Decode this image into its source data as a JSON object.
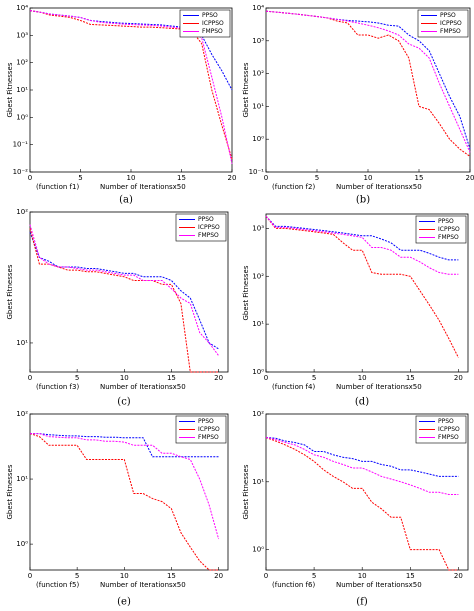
{
  "chart_data": [
    {
      "type": "line",
      "caption": "(a)",
      "x_note": "(function f1)",
      "xlabel": "Number of Iterationsx50",
      "ylabel": "Gbest Fitnesses",
      "yscale": "log",
      "grid": false,
      "legend": "upper right",
      "x": [
        0,
        1,
        2,
        3,
        4,
        5,
        6,
        7,
        8,
        9,
        10,
        11,
        12,
        13,
        14,
        15,
        16,
        17,
        18,
        19,
        20
      ],
      "xlim": [
        0,
        20
      ],
      "xticks": [
        0,
        5,
        10,
        15,
        20
      ],
      "ylim": [
        0.01,
        10000
      ],
      "yticks": [
        {
          "value": 0.01,
          "label": "10⁻²"
        },
        {
          "value": 0.1,
          "label": "10⁻¹"
        },
        {
          "value": 1,
          "label": "10⁰"
        },
        {
          "value": 10,
          "label": "10¹"
        },
        {
          "value": 100,
          "label": "10²"
        },
        {
          "value": 1000,
          "label": "10³"
        },
        {
          "value": 10000,
          "label": "10⁴"
        }
      ],
      "series": [
        {
          "name": "PPSO",
          "color": "#0000ff",
          "values": [
            8000,
            7000,
            6000,
            5500,
            5000,
            4500,
            3500,
            3200,
            3000,
            2800,
            2700,
            2600,
            2500,
            2400,
            2200,
            2000,
            1800,
            1000,
            200,
            50,
            10
          ]
        },
        {
          "name": "ICPPSO",
          "color": "#ff0000",
          "values": [
            8000,
            7000,
            5500,
            5000,
            4500,
            3500,
            2500,
            2400,
            2300,
            2200,
            2100,
            2000,
            2000,
            1900,
            1800,
            1700,
            1500,
            500,
            10,
            0.5,
            0.03
          ]
        },
        {
          "name": "FMPSO",
          "color": "#ff00ff",
          "values": [
            8000,
            7000,
            6000,
            5500,
            5000,
            4500,
            3500,
            3000,
            2800,
            2600,
            2500,
            2400,
            2300,
            2200,
            2000,
            1800,
            1500,
            800,
            30,
            1,
            0.02
          ]
        }
      ]
    },
    {
      "type": "line",
      "caption": "(b)",
      "x_note": "(function f2)",
      "xlabel": "Number of Iterationsx50",
      "ylabel": "Gbest Fitnesses",
      "yscale": "log",
      "grid": false,
      "legend": "upper right",
      "x": [
        0,
        1,
        2,
        3,
        4,
        5,
        6,
        7,
        8,
        9,
        10,
        11,
        12,
        13,
        14,
        15,
        16,
        17,
        18,
        19,
        20
      ],
      "xlim": [
        0,
        20
      ],
      "xticks": [
        0,
        5,
        10,
        15,
        20
      ],
      "ylim": [
        0.1,
        10000
      ],
      "yticks": [
        {
          "value": 0.1,
          "label": "10⁻¹"
        },
        {
          "value": 1,
          "label": "10⁰"
        },
        {
          "value": 10,
          "label": "10¹"
        },
        {
          "value": 100,
          "label": "10²"
        },
        {
          "value": 1000,
          "label": "10³"
        },
        {
          "value": 10000,
          "label": "10⁴"
        }
      ],
      "series": [
        {
          "name": "PPSO",
          "color": "#0000ff",
          "values": [
            8000,
            7500,
            7000,
            6500,
            6000,
            5500,
            5000,
            4500,
            4200,
            4000,
            3800,
            3500,
            3000,
            2800,
            1500,
            1000,
            500,
            100,
            20,
            5,
            0.5
          ]
        },
        {
          "name": "ICPPSO",
          "color": "#ff0000",
          "values": [
            8000,
            7500,
            7000,
            6500,
            6000,
            5500,
            5000,
            4000,
            3500,
            1500,
            1500,
            1200,
            1500,
            1000,
            300,
            10,
            8,
            3,
            1,
            0.5,
            0.3
          ]
        },
        {
          "name": "FMPSO",
          "color": "#ff00ff",
          "values": [
            8000,
            7500,
            7000,
            6500,
            6000,
            5500,
            5000,
            4500,
            4000,
            3500,
            3000,
            2500,
            2000,
            1500,
            800,
            600,
            300,
            50,
            10,
            2,
            0.4
          ]
        }
      ]
    },
    {
      "type": "line",
      "caption": "(c)",
      "x_note": "(function f3)",
      "xlabel": "Number of Iterationsx50",
      "ylabel": "Gbest Fitnesses",
      "yscale": "log",
      "grid": false,
      "legend": "upper right",
      "x": [
        0,
        1,
        2,
        3,
        4,
        5,
        6,
        7,
        8,
        9,
        10,
        11,
        12,
        13,
        14,
        15,
        16,
        17,
        18,
        19,
        20
      ],
      "xlim": [
        0,
        21
      ],
      "xticks": [
        0,
        5,
        10,
        15,
        20
      ],
      "ylim": [
        6,
        100
      ],
      "yticks": [
        {
          "value": 10,
          "label": "10¹"
        },
        {
          "value": 100,
          "label": "10²"
        }
      ],
      "series": [
        {
          "name": "PPSO",
          "color": "#0000ff",
          "values": [
            70,
            45,
            42,
            38,
            38,
            38,
            37,
            37,
            36,
            35,
            34,
            34,
            32,
            32,
            32,
            30,
            25,
            22,
            15,
            10,
            9
          ]
        },
        {
          "name": "ICPPSO",
          "color": "#ff0000",
          "values": [
            75,
            40,
            40,
            38,
            36,
            36,
            35,
            35,
            34,
            33,
            32,
            30,
            30,
            30,
            28,
            28,
            20,
            6,
            6,
            6,
            6
          ]
        },
        {
          "name": "FMPSO",
          "color": "#ff00ff",
          "values": [
            80,
            45,
            40,
            38,
            38,
            37,
            36,
            36,
            35,
            34,
            33,
            33,
            30,
            30,
            30,
            26,
            22,
            20,
            12,
            10,
            8
          ]
        }
      ]
    },
    {
      "type": "line",
      "caption": "(d)",
      "x_note": "(function f4)",
      "xlabel": "Number of Iterationsx50",
      "ylabel": "Gbest Fitnesses",
      "yscale": "log",
      "grid": false,
      "legend": "upper right",
      "x": [
        0,
        1,
        2,
        3,
        4,
        5,
        6,
        7,
        8,
        9,
        10,
        11,
        12,
        13,
        14,
        15,
        16,
        17,
        18,
        19,
        20
      ],
      "xlim": [
        0,
        21
      ],
      "xticks": [
        0,
        5,
        10,
        15,
        20
      ],
      "ylim": [
        1,
        2000
      ],
      "yticks": [
        {
          "value": 1,
          "label": "10⁰"
        },
        {
          "value": 10,
          "label": "10¹"
        },
        {
          "value": 100,
          "label": "10²"
        },
        {
          "value": 1000,
          "label": "10³"
        }
      ],
      "series": [
        {
          "name": "PPSO",
          "color": "#0000ff",
          "values": [
            1800,
            1100,
            1100,
            1050,
            1000,
            950,
            900,
            850,
            800,
            750,
            700,
            700,
            600,
            500,
            350,
            350,
            350,
            300,
            250,
            220,
            220
          ]
        },
        {
          "name": "ICPPSO",
          "color": "#ff0000",
          "values": [
            1800,
            1000,
            1000,
            950,
            900,
            850,
            800,
            750,
            500,
            350,
            350,
            120,
            110,
            110,
            110,
            100,
            50,
            25,
            12,
            5,
            2
          ]
        },
        {
          "name": "FMPSO",
          "color": "#ff00ff",
          "values": [
            1800,
            1050,
            1050,
            1000,
            950,
            900,
            850,
            800,
            750,
            700,
            650,
            400,
            400,
            350,
            250,
            250,
            200,
            150,
            120,
            110,
            110
          ]
        }
      ]
    },
    {
      "type": "line",
      "caption": "(e)",
      "x_note": "(function f5)",
      "xlabel": "Number of Iterationsx50",
      "ylabel": "Gbest Fitnesses",
      "yscale": "log",
      "grid": false,
      "legend": "upper right",
      "x": [
        0,
        1,
        2,
        3,
        4,
        5,
        6,
        7,
        8,
        9,
        10,
        11,
        12,
        13,
        14,
        15,
        16,
        17,
        18,
        19,
        20
      ],
      "xlim": [
        0,
        21
      ],
      "xticks": [
        0,
        5,
        10,
        15,
        20
      ],
      "ylim": [
        0.4,
        100
      ],
      "yticks": [
        {
          "value": 1,
          "label": "10⁰"
        },
        {
          "value": 10,
          "label": "10¹"
        },
        {
          "value": 100,
          "label": "10²"
        }
      ],
      "series": [
        {
          "name": "PPSO",
          "color": "#0000ff",
          "values": [
            50,
            50,
            48,
            47,
            46,
            46,
            45,
            45,
            44,
            44,
            43,
            43,
            43,
            22,
            22,
            22,
            22,
            22,
            22,
            22,
            22
          ]
        },
        {
          "name": "ICPPSO",
          "color": "#ff0000",
          "values": [
            50,
            45,
            33,
            33,
            33,
            33,
            20,
            20,
            20,
            20,
            20,
            6,
            6,
            5,
            4.5,
            3.5,
            1.5,
            0.9,
            0.55,
            0.4,
            0.4
          ]
        },
        {
          "name": "FMPSO",
          "color": "#ff00ff",
          "values": [
            50,
            50,
            45,
            44,
            43,
            43,
            40,
            40,
            38,
            38,
            37,
            33,
            33,
            33,
            25,
            25,
            22,
            20,
            10,
            4,
            1.2
          ]
        }
      ]
    },
    {
      "type": "line",
      "caption": "(f)",
      "x_note": "(function f6)",
      "xlabel": "Number of Iterationsx50",
      "ylabel": "Gbest Fitnesses",
      "yscale": "log",
      "grid": false,
      "legend": "upper right",
      "x": [
        0,
        1,
        2,
        3,
        4,
        5,
        6,
        7,
        8,
        9,
        10,
        11,
        12,
        13,
        14,
        15,
        16,
        17,
        18,
        19,
        20
      ],
      "xlim": [
        0,
        21
      ],
      "xticks": [
        0,
        5,
        10,
        15,
        20
      ],
      "ylim": [
        0.5,
        100
      ],
      "yticks": [
        {
          "value": 1,
          "label": "10⁰"
        },
        {
          "value": 10,
          "label": "10¹"
        },
        {
          "value": 100,
          "label": "10²"
        }
      ],
      "series": [
        {
          "name": "PPSO",
          "color": "#0000ff",
          "values": [
            45,
            44,
            40,
            38,
            35,
            28,
            28,
            25,
            23,
            22,
            20,
            20,
            18,
            17,
            15,
            15,
            14,
            13,
            12,
            12,
            12
          ]
        },
        {
          "name": "ICPPSO",
          "color": "#ff0000",
          "values": [
            45,
            40,
            35,
            30,
            25,
            20,
            15,
            12,
            10,
            8,
            8,
            5,
            4,
            3,
            3,
            1,
            1,
            1,
            1,
            0.5,
            0.5
          ]
        },
        {
          "name": "FMPSO",
          "color": "#ff00ff",
          "values": [
            45,
            42,
            38,
            35,
            30,
            25,
            23,
            20,
            18,
            16,
            16,
            14,
            12,
            11,
            10,
            9,
            8,
            7,
            7,
            6.5,
            6.5
          ]
        }
      ]
    }
  ]
}
